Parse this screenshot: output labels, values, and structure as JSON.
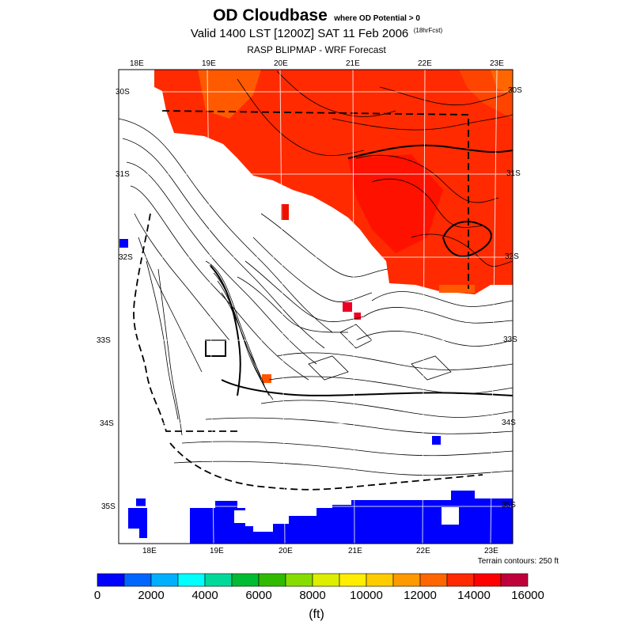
{
  "title": {
    "main": "OD Cloudbase",
    "qualifier": "where OD Potential > 0",
    "subtitle": "Valid 1400 LST [1200Z] SAT 11 Feb 2006",
    "forecast_tag": "(18hrFcst)",
    "source": "RASP BLIPMAP - WRF Forecast"
  },
  "map": {
    "lon_labels_top": [
      "18E",
      "19E",
      "20E",
      "21E",
      "22E",
      "23E"
    ],
    "lon_labels_bottom": [
      "18E",
      "19E",
      "20E",
      "21E",
      "22E",
      "23E"
    ],
    "lat_labels_left": [
      "30S",
      "31S",
      "32S",
      "33S",
      "34S",
      "35S"
    ],
    "lat_labels_right": [
      "30S",
      "31S",
      "32S",
      "33S",
      "34S",
      "35S"
    ],
    "terrain_note": "Terrain contours: 250 ft",
    "field": "cloudbase height",
    "regions": [
      {
        "area": "north (about 30S-32.3S)",
        "level_ft": "13000-15000",
        "color": "#ff2a00"
      },
      {
        "area": "south coast (about 35S)",
        "level_ft": "0-1000",
        "color": "#0000ff"
      },
      {
        "area": "central interior",
        "level_ft": "none (no OD potential)",
        "color": "#ffffff"
      }
    ]
  },
  "colorbar": {
    "tick_labels": [
      "0",
      "2000",
      "4000",
      "6000",
      "8000",
      "10000",
      "12000",
      "14000",
      "16000"
    ],
    "unit": "(ft)",
    "colors": [
      "#0000ff",
      "#0066ff",
      "#00b0ff",
      "#00ffff",
      "#00d99a",
      "#00bb33",
      "#30bb00",
      "#88dd00",
      "#ddee00",
      "#ffee00",
      "#ffcc00",
      "#ff9900",
      "#ff6600",
      "#ff2a00",
      "#ff0000",
      "#c0003a"
    ]
  }
}
